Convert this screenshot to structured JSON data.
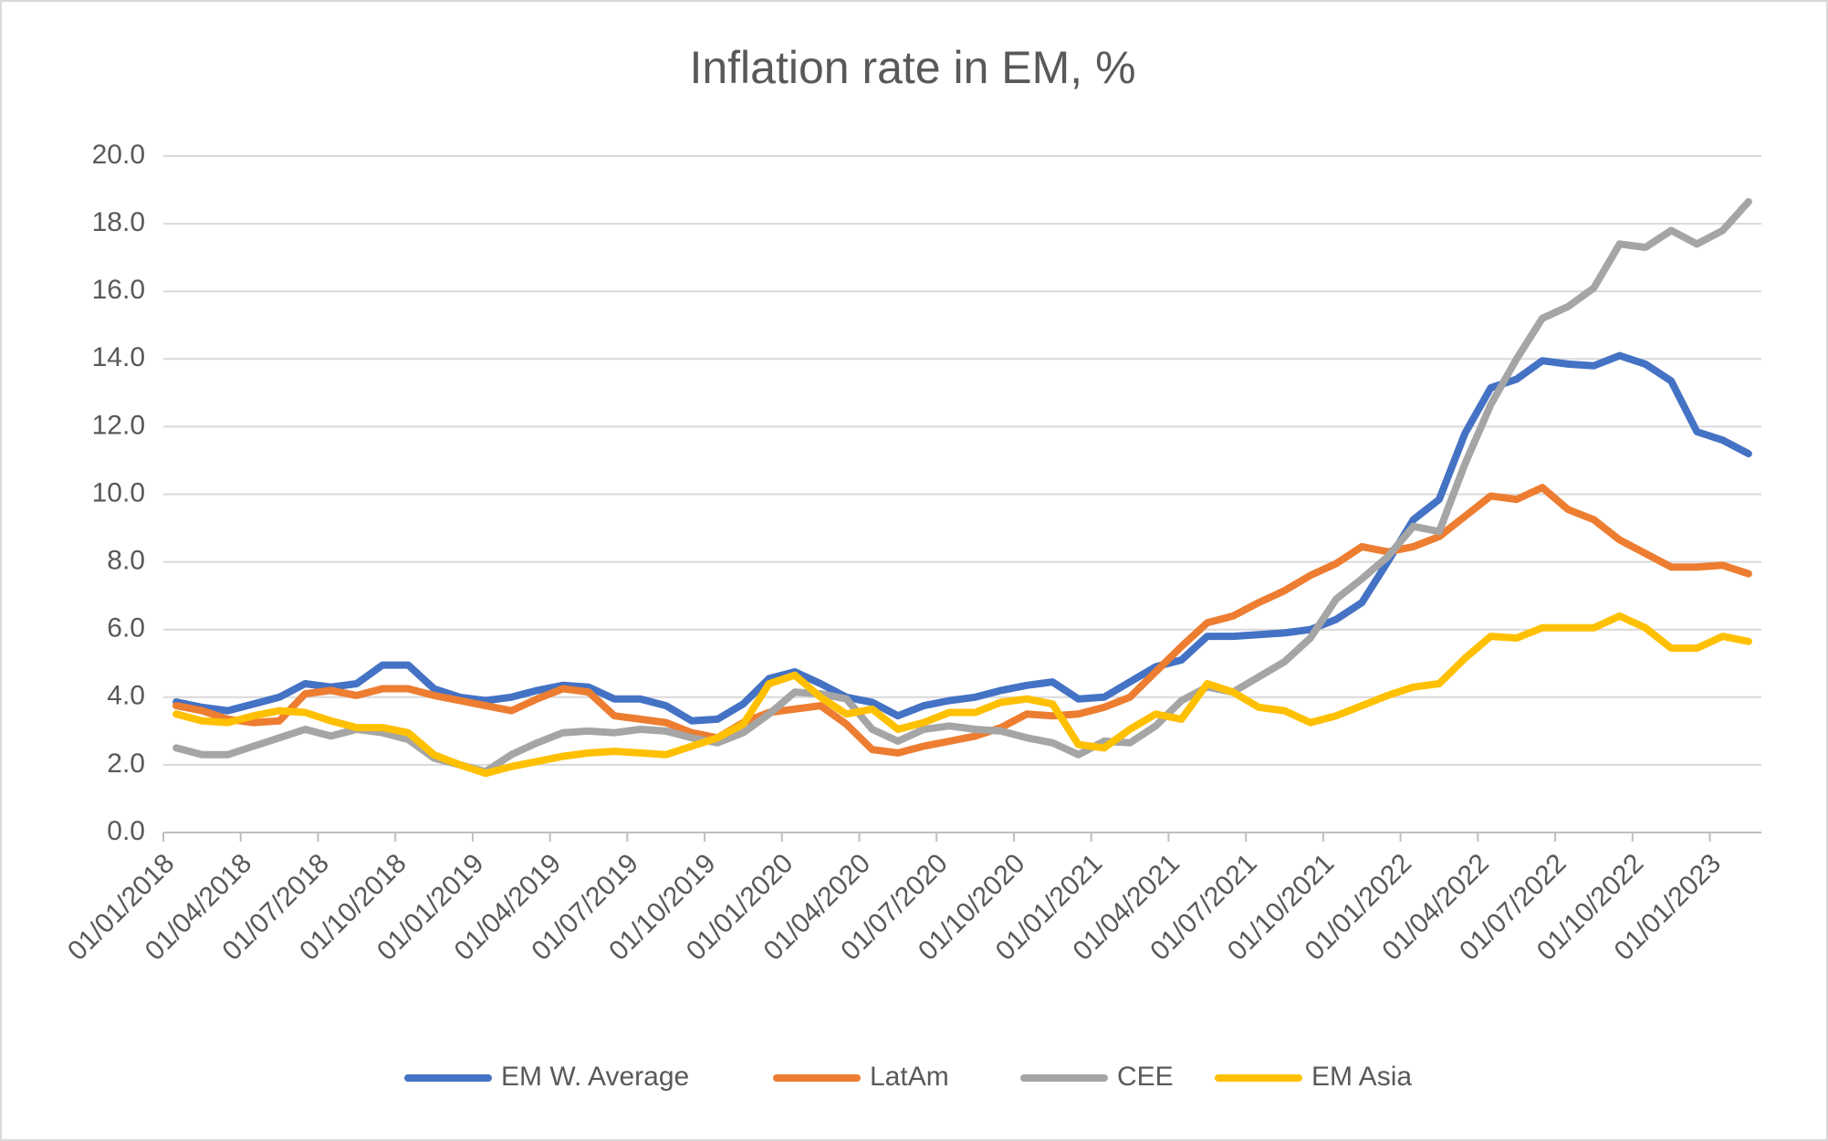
{
  "chart_data": {
    "type": "line",
    "title": "Inflation rate in EM, %",
    "categories": [
      "01/01/2018",
      null,
      null,
      "01/04/2018",
      null,
      null,
      "01/07/2018",
      null,
      null,
      "01/10/2018",
      null,
      null,
      "01/01/2019",
      null,
      null,
      "01/04/2019",
      null,
      null,
      "01/07/2019",
      null,
      null,
      "01/10/2019",
      null,
      null,
      "01/01/2020",
      null,
      null,
      "01/04/2020",
      null,
      null,
      "01/07/2020",
      null,
      null,
      "01/10/2020",
      null,
      null,
      "01/01/2021",
      null,
      null,
      "01/04/2021",
      null,
      null,
      "01/07/2021",
      null,
      null,
      "01/10/2021",
      null,
      null,
      "01/01/2022",
      null,
      null,
      "01/04/2022",
      null,
      null,
      "01/07/2022",
      null,
      null,
      "01/10/2022",
      null,
      null,
      "01/01/2023",
      null
    ],
    "series": [
      {
        "name": "EM W. Average",
        "color": "#4472c4",
        "values": [
          3.86,
          3.7,
          3.6,
          3.8,
          4.0,
          4.4,
          4.3,
          4.4,
          4.95,
          4.95,
          4.25,
          4.0,
          3.9,
          4.0,
          4.2,
          4.35,
          4.3,
          3.95,
          3.95,
          3.75,
          3.3,
          3.35,
          3.8,
          4.55,
          4.75,
          4.4,
          4.0,
          3.85,
          3.45,
          3.75,
          3.9,
          4.0,
          4.2,
          4.35,
          4.45,
          3.95,
          4.0,
          4.45,
          4.9,
          5.1,
          5.8,
          5.8,
          5.85,
          5.9,
          6.0,
          6.3,
          6.8,
          8.0,
          9.25,
          9.85,
          11.8,
          13.15,
          13.4,
          13.95,
          13.85,
          13.8,
          14.1,
          13.85,
          13.35,
          11.85,
          11.6,
          11.2
        ]
      },
      {
        "name": "LatAm",
        "color": "#ed7d31",
        "values": [
          3.75,
          3.6,
          3.35,
          3.25,
          3.3,
          4.1,
          4.2,
          4.05,
          4.25,
          4.25,
          4.05,
          3.9,
          3.75,
          3.6,
          3.95,
          4.25,
          4.15,
          3.45,
          3.35,
          3.25,
          2.95,
          2.8,
          3.25,
          3.55,
          3.65,
          3.75,
          3.2,
          2.45,
          2.35,
          2.55,
          2.7,
          2.85,
          3.1,
          3.5,
          3.45,
          3.5,
          3.7,
          4.0,
          4.75,
          5.5,
          6.2,
          6.4,
          6.8,
          7.15,
          7.6,
          7.95,
          8.45,
          8.3,
          8.45,
          8.75,
          9.35,
          9.95,
          9.85,
          10.2,
          9.55,
          9.25,
          8.65,
          8.25,
          7.85,
          7.85,
          7.9,
          7.65
        ]
      },
      {
        "name": "CEE",
        "color": "#a5a5a5",
        "values": [
          2.5,
          2.3,
          2.3,
          2.55,
          2.8,
          3.05,
          2.85,
          3.05,
          2.95,
          2.75,
          2.2,
          2.0,
          1.8,
          2.3,
          2.65,
          2.95,
          3.0,
          2.95,
          3.05,
          3.0,
          2.8,
          2.65,
          2.95,
          3.5,
          4.15,
          4.1,
          3.95,
          3.05,
          2.7,
          3.05,
          3.15,
          3.05,
          3.0,
          2.8,
          2.65,
          2.3,
          2.7,
          2.65,
          3.15,
          3.9,
          4.3,
          4.15,
          4.6,
          5.05,
          5.75,
          6.9,
          7.5,
          8.15,
          9.05,
          8.9,
          10.9,
          12.65,
          14.0,
          15.2,
          15.55,
          16.1,
          17.4,
          17.3,
          17.8,
          17.4,
          17.8,
          18.65
        ]
      },
      {
        "name": "EM Asia",
        "color": "#ffc000",
        "values": [
          3.5,
          3.3,
          3.25,
          3.45,
          3.6,
          3.55,
          3.3,
          3.1,
          3.1,
          2.95,
          2.3,
          2.0,
          1.75,
          1.95,
          2.1,
          2.25,
          2.35,
          2.4,
          2.35,
          2.3,
          2.55,
          2.8,
          3.2,
          4.4,
          4.65,
          4.0,
          3.5,
          3.65,
          3.05,
          3.25,
          3.55,
          3.55,
          3.85,
          3.95,
          3.8,
          2.6,
          2.5,
          3.05,
          3.5,
          3.35,
          4.4,
          4.15,
          3.7,
          3.6,
          3.25,
          3.45,
          3.75,
          4.05,
          4.3,
          4.4,
          5.15,
          5.8,
          5.75,
          6.05,
          6.05,
          6.05,
          6.4,
          6.05,
          5.45,
          5.45,
          5.8,
          5.65
        ]
      }
    ],
    "ylim": [
      0,
      20
    ],
    "yticks": [
      {
        "value": 0,
        "label": "0.0"
      },
      {
        "value": 2,
        "label": "2.0"
      },
      {
        "value": 4,
        "label": "4.0"
      },
      {
        "value": 6,
        "label": "6.0"
      },
      {
        "value": 8,
        "label": "8.0"
      },
      {
        "value": 10,
        "label": "10.0"
      },
      {
        "value": 12,
        "label": "12.0"
      },
      {
        "value": 14,
        "label": "14.0"
      },
      {
        "value": 16,
        "label": "16.0"
      },
      {
        "value": 18,
        "label": "18.0"
      },
      {
        "value": 20,
        "label": "20.0"
      }
    ],
    "grid": true,
    "legend": "bottom"
  }
}
